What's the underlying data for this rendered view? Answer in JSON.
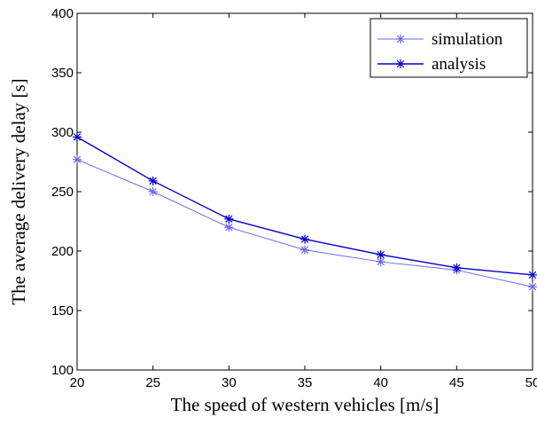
{
  "chart_data": {
    "type": "line",
    "title": "",
    "xlabel": "The speed of western vehicles [m/s]",
    "ylabel": "The average delivery delay [s]",
    "xlim": [
      20,
      50
    ],
    "ylim": [
      100,
      400
    ],
    "xticks": [
      20,
      25,
      30,
      35,
      40,
      45,
      50
    ],
    "yticks": [
      100,
      150,
      200,
      250,
      300,
      350,
      400
    ],
    "x": [
      20,
      25,
      30,
      35,
      40,
      45,
      50
    ],
    "grid": false,
    "legend_position": "top-right",
    "series": [
      {
        "name": "simulation",
        "color": "#6a6ae8",
        "marker": "asterisk",
        "values": [
          277,
          250,
          220,
          201,
          191,
          184,
          170
        ]
      },
      {
        "name": "analysis",
        "color": "#0000cc",
        "marker": "asterisk",
        "values": [
          296,
          259,
          227,
          210,
          197,
          186,
          180
        ]
      }
    ]
  }
}
